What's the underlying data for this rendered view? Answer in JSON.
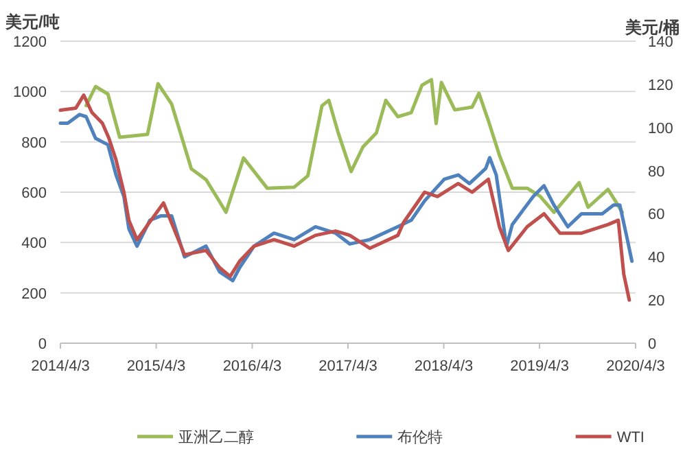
{
  "chart_data": {
    "type": "line",
    "ylabel": "美元/吨",
    "y2label": "美元/桶",
    "xlim": [
      "2014-04-03",
      "2020-04-03"
    ],
    "xticks": [
      {
        "value": "2014-04-03",
        "label": "2014/4/3"
      },
      {
        "value": "2015-04-03",
        "label": "2015/4/3"
      },
      {
        "value": "2016-04-03",
        "label": "2016/4/3"
      },
      {
        "value": "2017-04-03",
        "label": "2017/4/3"
      },
      {
        "value": "2018-04-03",
        "label": "2018/4/3"
      },
      {
        "value": "2019-04-03",
        "label": "2019/4/3"
      },
      {
        "value": "2020-04-03",
        "label": "2020/4/3"
      }
    ],
    "ylim": [
      0,
      1200
    ],
    "yticks": [
      0,
      200,
      400,
      600,
      800,
      1000,
      1200
    ],
    "y2lim": [
      0,
      140
    ],
    "y2ticks": [
      0,
      20,
      40,
      60,
      80,
      100,
      120,
      140
    ],
    "grid": "y",
    "legend": "bottom",
    "line_style": "solid",
    "series": [
      {
        "name": "亚洲乙二醇",
        "color": "#9bbb59",
        "x": [
          "2014-07-10",
          "2014-08-15",
          "2014-10-01",
          "2014-11-15",
          "2015-03-01",
          "2015-04-10",
          "2015-06-01",
          "2015-08-15",
          "2015-10-10",
          "2015-12-01",
          "2015-12-25",
          "2016-03-01",
          "2016-05-30",
          "2016-09-10",
          "2016-11-01",
          "2016-12-25",
          "2017-01-20",
          "2017-02-25",
          "2017-04-15",
          "2017-05-30",
          "2017-07-20",
          "2017-08-25",
          "2017-10-10",
          "2017-11-30",
          "2018-01-10",
          "2018-02-15",
          "2018-03-05",
          "2018-03-25",
          "2018-05-15",
          "2018-07-20",
          "2018-08-15",
          "2018-09-20",
          "2018-11-01",
          "2018-12-20",
          "2019-02-15",
          "2019-04-05",
          "2019-05-28",
          "2019-09-01",
          "2019-10-05",
          "2019-12-20",
          "2020-01-20",
          "2020-02-12"
        ],
        "values": [
          944,
          1020,
          990,
          818,
          830,
          1031,
          950,
          693,
          650,
          562,
          520,
          736,
          616,
          620,
          665,
          944,
          965,
          835,
          682,
          780,
          835,
          965,
          900,
          916,
          1025,
          1047,
          873,
          1036,
          927,
          938,
          993,
          884,
          747,
          616,
          616,
          584,
          520,
          638,
          540,
          611,
          560,
          520
        ]
      },
      {
        "name": "布伦特",
        "color": "#4f81bd",
        "axis": "y2",
        "x": [
          "2014-04-03",
          "2014-05-01",
          "2014-06-15",
          "2014-07-10",
          "2014-08-15",
          "2014-10-01",
          "2014-11-01",
          "2014-12-01",
          "2014-12-20",
          "2015-01-20",
          "2015-03-10",
          "2015-04-20",
          "2015-06-01",
          "2015-07-20",
          "2015-10-10",
          "2015-12-01",
          "2016-01-20",
          "2016-02-15",
          "2016-04-10",
          "2016-06-25",
          "2016-09-10",
          "2016-11-30",
          "2017-02-15",
          "2017-04-10",
          "2017-06-25",
          "2017-10-10",
          "2017-11-30",
          "2018-01-20",
          "2018-04-05",
          "2018-05-28",
          "2018-07-10",
          "2018-09-10",
          "2018-09-25",
          "2018-10-20",
          "2018-11-28",
          "2018-12-20",
          "2019-03-10",
          "2019-04-20",
          "2019-05-28",
          "2019-07-20",
          "2019-09-10",
          "2019-11-28",
          "2020-01-10",
          "2020-02-03",
          "2020-03-01",
          "2020-03-20"
        ],
        "values": [
          102,
          102,
          106,
          105,
          95,
          92,
          78,
          68,
          53,
          45,
          57,
          59,
          59,
          40,
          45,
          33,
          29,
          35,
          45,
          51,
          48,
          54,
          51,
          46,
          48,
          54,
          57,
          66,
          76,
          78,
          74,
          81,
          86,
          78,
          45,
          55,
          68,
          73,
          64,
          54,
          60,
          60,
          64,
          64,
          49,
          38
        ]
      },
      {
        "name": "WTI",
        "color": "#c0504d",
        "axis": "y2",
        "x": [
          "2014-04-03",
          "2014-06-01",
          "2014-07-01",
          "2014-08-01",
          "2014-09-10",
          "2014-10-05",
          "2014-11-01",
          "2014-12-01",
          "2014-12-20",
          "2015-01-20",
          "2015-05-01",
          "2015-07-20",
          "2015-10-10",
          "2015-12-01",
          "2016-01-10",
          "2016-02-15",
          "2016-04-10",
          "2016-06-25",
          "2016-09-10",
          "2016-11-30",
          "2017-02-15",
          "2017-04-10",
          "2017-06-25",
          "2017-10-10",
          "2017-11-01",
          "2018-01-20",
          "2018-03-10",
          "2018-05-28",
          "2018-07-20",
          "2018-09-20",
          "2018-11-01",
          "2018-12-05",
          "2019-02-15",
          "2019-04-20",
          "2019-06-20",
          "2019-09-10",
          "2019-12-20",
          "2020-01-28",
          "2020-02-18",
          "2020-03-10"
        ],
        "values": [
          108,
          109,
          115,
          107,
          102,
          95,
          85,
          70,
          57,
          48,
          65,
          41,
          43,
          35,
          31,
          38,
          45,
          48,
          45,
          50,
          52,
          50,
          44,
          50,
          56,
          70,
          68,
          74,
          70,
          76,
          54,
          43,
          54,
          60,
          51,
          51,
          55,
          57,
          32,
          20
        ]
      }
    ]
  }
}
